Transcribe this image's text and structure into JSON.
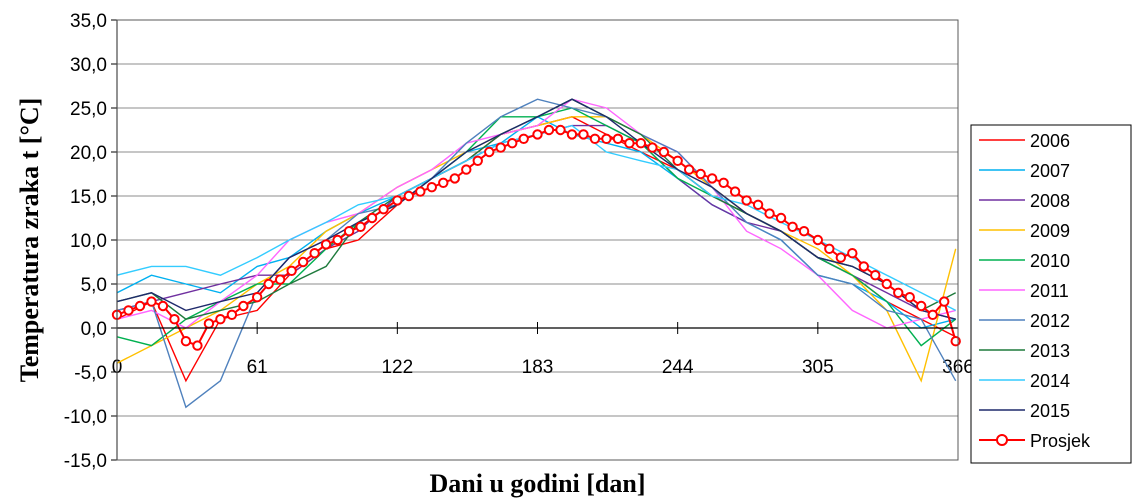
{
  "chart_data": {
    "type": "line",
    "title": "",
    "xlabel": "Dani u godini [dan]",
    "ylabel": "Temperatura zraka t [°C]",
    "xlim": [
      0,
      366
    ],
    "ylim": [
      -15,
      35
    ],
    "xticks": [
      0,
      61,
      122,
      183,
      244,
      305,
      366
    ],
    "xtick_labels": [
      "0",
      "61",
      "122",
      "183",
      "244",
      "305",
      "366"
    ],
    "yticks": [
      -15,
      -10,
      -5,
      0,
      5,
      10,
      15,
      20,
      25,
      30,
      35
    ],
    "ytick_labels": [
      "-15,0",
      "-10,0",
      "-5,0",
      "0,0",
      "5,0",
      "10,0",
      "15,0",
      "20,0",
      "25,0",
      "30,0",
      "35,0"
    ],
    "grid": "horizontal",
    "legend_position": "right",
    "series": [
      {
        "name": "2006",
        "color": "#ff0000",
        "x": [
          0,
          15,
          30,
          45,
          61,
          75,
          91,
          105,
          122,
          137,
          152,
          167,
          183,
          198,
          213,
          228,
          244,
          259,
          274,
          289,
          305,
          320,
          335,
          350,
          365
        ],
        "values": [
          1,
          3,
          -6,
          1,
          2,
          6,
          9,
          10,
          14,
          17,
          19,
          22,
          23,
          24,
          22,
          20,
          18,
          15,
          13,
          11,
          8,
          6,
          3,
          1,
          -1
        ]
      },
      {
        "name": "2007",
        "color": "#00b0f0",
        "x": [
          0,
          15,
          30,
          45,
          61,
          75,
          91,
          105,
          122,
          137,
          152,
          167,
          183,
          198,
          213,
          228,
          244,
          259,
          274,
          289,
          305,
          320,
          335,
          350,
          365
        ],
        "values": [
          4,
          6,
          5,
          4,
          7,
          8,
          11,
          13,
          15,
          17,
          20,
          21,
          24,
          22,
          21,
          20,
          17,
          14,
          12,
          10,
          6,
          5,
          3,
          0,
          1
        ]
      },
      {
        "name": "2008",
        "color": "#7030a0",
        "x": [
          0,
          15,
          30,
          45,
          61,
          75,
          91,
          105,
          122,
          137,
          152,
          167,
          183,
          198,
          213,
          228,
          244,
          259,
          274,
          289,
          305,
          320,
          335,
          350,
          365
        ],
        "values": [
          2,
          3,
          4,
          5,
          6,
          6,
          9,
          11,
          15,
          17,
          19,
          21,
          22,
          23,
          23,
          21,
          17,
          14,
          12,
          11,
          8,
          6,
          4,
          2,
          1
        ]
      },
      {
        "name": "2009",
        "color": "#ffc000",
        "x": [
          0,
          15,
          30,
          45,
          61,
          75,
          91,
          105,
          122,
          137,
          152,
          167,
          183,
          198,
          213,
          228,
          244,
          259,
          274,
          289,
          305,
          320,
          335,
          350,
          365
        ],
        "values": [
          -4,
          -2,
          0,
          2,
          5,
          7,
          11,
          13,
          16,
          18,
          20,
          22,
          23,
          24,
          24,
          22,
          19,
          16,
          13,
          11,
          9,
          6,
          2,
          -6,
          9
        ]
      },
      {
        "name": "2010",
        "color": "#00b050",
        "x": [
          0,
          15,
          30,
          45,
          61,
          75,
          91,
          105,
          122,
          137,
          152,
          167,
          183,
          198,
          213,
          228,
          244,
          259,
          274,
          289,
          305,
          320,
          335,
          350,
          365
        ],
        "values": [
          -1,
          -2,
          1,
          3,
          5,
          5,
          9,
          12,
          14,
          17,
          20,
          24,
          24,
          25,
          23,
          21,
          17,
          15,
          13,
          11,
          8,
          6,
          3,
          -2,
          1
        ]
      },
      {
        "name": "2011",
        "color": "#ff66ff",
        "x": [
          0,
          15,
          30,
          45,
          61,
          75,
          91,
          105,
          122,
          137,
          152,
          167,
          183,
          198,
          213,
          228,
          244,
          259,
          274,
          289,
          305,
          320,
          335,
          350,
          365
        ],
        "values": [
          1,
          2,
          0,
          3,
          6,
          10,
          12,
          13,
          16,
          18,
          21,
          22,
          23,
          26,
          25,
          22,
          20,
          16,
          11,
          9,
          6,
          2,
          0,
          1,
          2
        ]
      },
      {
        "name": "2012",
        "color": "#4f81bd",
        "x": [
          0,
          15,
          30,
          45,
          61,
          75,
          91,
          105,
          122,
          137,
          152,
          167,
          183,
          198,
          213,
          228,
          244,
          259,
          274,
          289,
          305,
          320,
          335,
          350,
          365
        ],
        "values": [
          2,
          3,
          -9,
          -6,
          4,
          8,
          10,
          13,
          14,
          17,
          21,
          24,
          26,
          25,
          24,
          22,
          20,
          16,
          12,
          10,
          6,
          5,
          2,
          1,
          -6
        ]
      },
      {
        "name": "2013",
        "color": "#1e7a3c",
        "x": [
          0,
          15,
          30,
          45,
          61,
          75,
          91,
          105,
          122,
          137,
          152,
          167,
          183,
          198,
          213,
          228,
          244,
          259,
          274,
          289,
          305,
          320,
          335,
          350,
          365
        ],
        "values": [
          3,
          4,
          1,
          2,
          3,
          5,
          7,
          12,
          15,
          17,
          19,
          22,
          24,
          26,
          24,
          22,
          18,
          15,
          13,
          11,
          8,
          7,
          5,
          2,
          4
        ]
      },
      {
        "name": "2014",
        "color": "#33ccff",
        "x": [
          0,
          15,
          30,
          45,
          61,
          75,
          91,
          105,
          122,
          137,
          152,
          167,
          183,
          198,
          213,
          228,
          244,
          259,
          274,
          289,
          305,
          320,
          335,
          350,
          365
        ],
        "values": [
          6,
          7,
          7,
          6,
          8,
          10,
          12,
          14,
          15,
          17,
          19,
          21,
          22,
          23,
          20,
          19,
          18,
          15,
          14,
          12,
          10,
          8,
          6,
          4,
          2
        ]
      },
      {
        "name": "2015",
        "color": "#1f2a6b",
        "x": [
          0,
          15,
          30,
          45,
          61,
          75,
          91,
          105,
          122,
          137,
          152,
          167,
          183,
          198,
          213,
          228,
          244,
          259,
          274,
          289,
          305,
          320,
          335,
          350,
          365
        ],
        "values": [
          3,
          4,
          2,
          3,
          4,
          8,
          10,
          12,
          14,
          17,
          20,
          22,
          24,
          26,
          24,
          21,
          18,
          16,
          13,
          11,
          8,
          7,
          5,
          2,
          1
        ]
      },
      {
        "name": "Prosjek",
        "color": "#ff0000",
        "marker": "circle-open-white",
        "x": [
          0,
          5,
          10,
          15,
          20,
          25,
          30,
          35,
          40,
          45,
          50,
          55,
          61,
          66,
          71,
          76,
          81,
          86,
          91,
          96,
          101,
          106,
          111,
          116,
          122,
          127,
          132,
          137,
          142,
          147,
          152,
          157,
          162,
          167,
          172,
          177,
          183,
          188,
          193,
          198,
          203,
          208,
          213,
          218,
          223,
          228,
          233,
          238,
          244,
          249,
          254,
          259,
          264,
          269,
          274,
          279,
          284,
          289,
          294,
          299,
          305,
          310,
          315,
          320,
          325,
          330,
          335,
          340,
          345,
          350,
          355,
          360,
          365
        ],
        "values": [
          1.5,
          2.0,
          2.5,
          3.0,
          2.5,
          1.0,
          -1.5,
          -2.0,
          0.5,
          1.0,
          1.5,
          2.5,
          3.5,
          5.0,
          5.5,
          6.5,
          7.5,
          8.5,
          9.5,
          10.0,
          11.0,
          11.5,
          12.5,
          13.5,
          14.5,
          15.0,
          15.5,
          16.0,
          16.5,
          17.0,
          18.0,
          19.0,
          20.0,
          20.5,
          21.0,
          21.5,
          22.0,
          22.5,
          22.5,
          22.0,
          22.0,
          21.5,
          21.5,
          21.5,
          21.0,
          21.0,
          20.5,
          20.0,
          19.0,
          18.0,
          17.5,
          17.0,
          16.5,
          15.5,
          14.5,
          14.0,
          13.0,
          12.5,
          11.5,
          11.0,
          10.0,
          9.0,
          8.0,
          8.5,
          7.0,
          6.0,
          5.0,
          4.0,
          3.5,
          2.5,
          1.5,
          3.0,
          -1.5
        ]
      }
    ]
  }
}
